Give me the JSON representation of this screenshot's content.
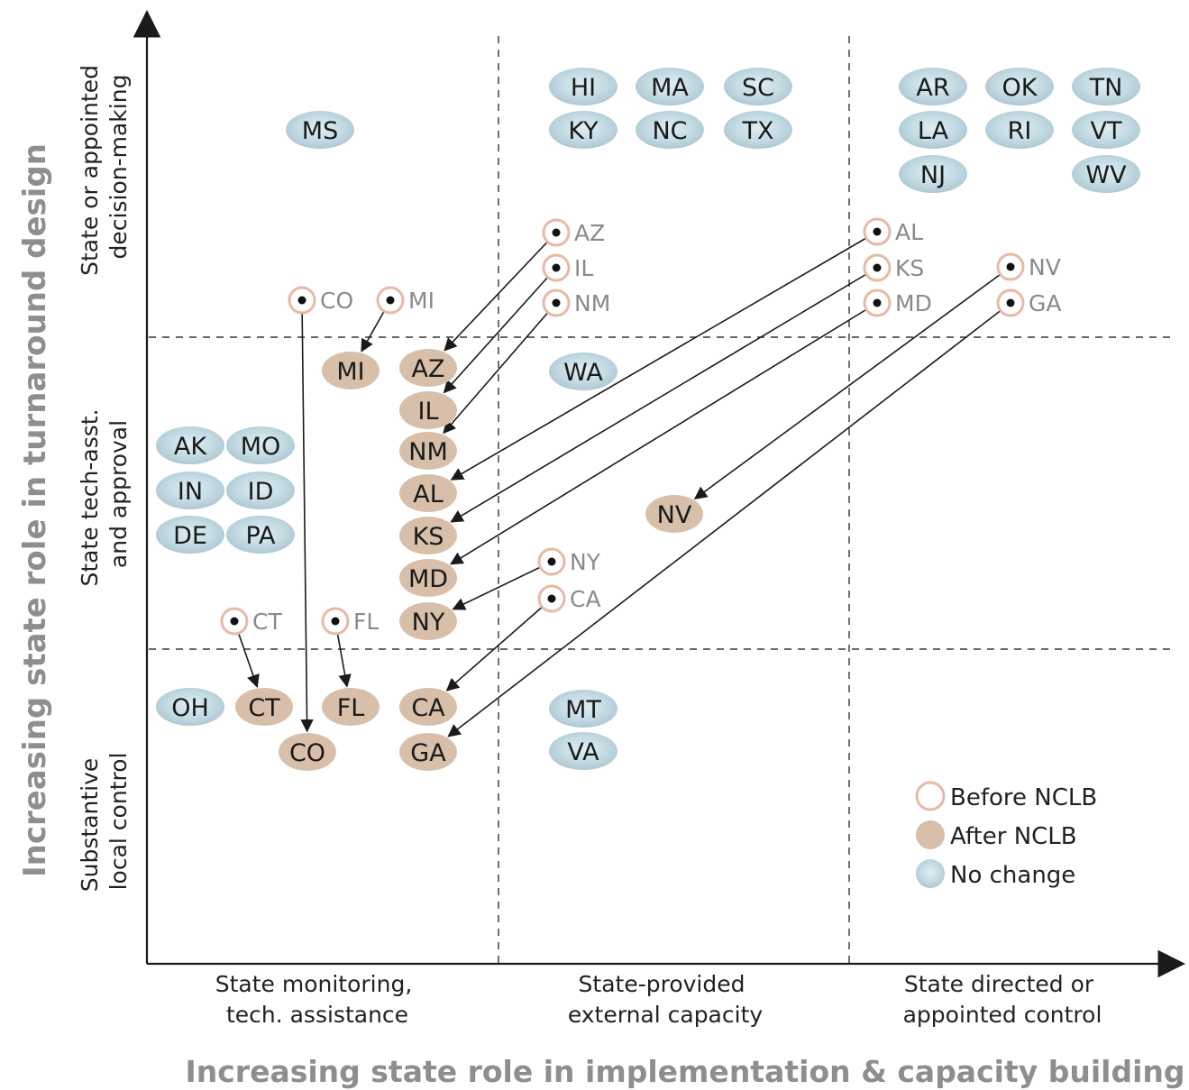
{
  "axes": {
    "y_title": "Increasing state role in turnaround design",
    "x_title": "Increasing state role in implementation & capacity building",
    "y_levels": [
      {
        "lines": [
          "State or appointed",
          "decision-making"
        ]
      },
      {
        "lines": [
          "State tech-asst.",
          "and approval"
        ]
      },
      {
        "lines": [
          "Substantive",
          "local control"
        ]
      }
    ],
    "x_levels": [
      {
        "lines": [
          "State monitoring,",
          "tech. assistance"
        ]
      },
      {
        "lines": [
          "State-provided",
          "external capacity"
        ]
      },
      {
        "lines": [
          "State directed or",
          "appointed control"
        ]
      }
    ]
  },
  "legend": {
    "before": "Before NCLB",
    "after": "After NCLB",
    "nochange": "No change"
  },
  "colors": {
    "no_change_fill": "#bcd3db",
    "after_fill": "#d7bfa9",
    "before_ring": "#e7b9a6",
    "axis": "#1a1a1a",
    "label_grey": "#8a8a8a",
    "title_grey": "#8e8e8e"
  },
  "no_change": [
    {
      "label": "MS"
    },
    {
      "label": "HI"
    },
    {
      "label": "MA"
    },
    {
      "label": "SC"
    },
    {
      "label": "KY"
    },
    {
      "label": "NC"
    },
    {
      "label": "TX"
    },
    {
      "label": "AR"
    },
    {
      "label": "OK"
    },
    {
      "label": "TN"
    },
    {
      "label": "LA"
    },
    {
      "label": "RI"
    },
    {
      "label": "VT"
    },
    {
      "label": "NJ"
    },
    {
      "label": "WV"
    },
    {
      "label": "WA"
    },
    {
      "label": "AK"
    },
    {
      "label": "MO"
    },
    {
      "label": "IN"
    },
    {
      "label": "ID"
    },
    {
      "label": "DE"
    },
    {
      "label": "PA"
    },
    {
      "label": "OH"
    },
    {
      "label": "MT"
    },
    {
      "label": "VA"
    }
  ],
  "after": [
    {
      "label": "MI"
    },
    {
      "label": "AZ"
    },
    {
      "label": "IL"
    },
    {
      "label": "NM"
    },
    {
      "label": "AL"
    },
    {
      "label": "KS"
    },
    {
      "label": "MD"
    },
    {
      "label": "NY"
    },
    {
      "label": "NV"
    },
    {
      "label": "CT"
    },
    {
      "label": "FL"
    },
    {
      "label": "CA"
    },
    {
      "label": "CO"
    },
    {
      "label": "GA"
    }
  ],
  "before": [
    {
      "label": "CO"
    },
    {
      "label": "MI"
    },
    {
      "label": "AZ"
    },
    {
      "label": "IL"
    },
    {
      "label": "NM"
    },
    {
      "label": "AL"
    },
    {
      "label": "KS"
    },
    {
      "label": "MD"
    },
    {
      "label": "NV"
    },
    {
      "label": "GA"
    },
    {
      "label": "NY"
    },
    {
      "label": "CA"
    },
    {
      "label": "CT"
    },
    {
      "label": "FL"
    }
  ]
}
